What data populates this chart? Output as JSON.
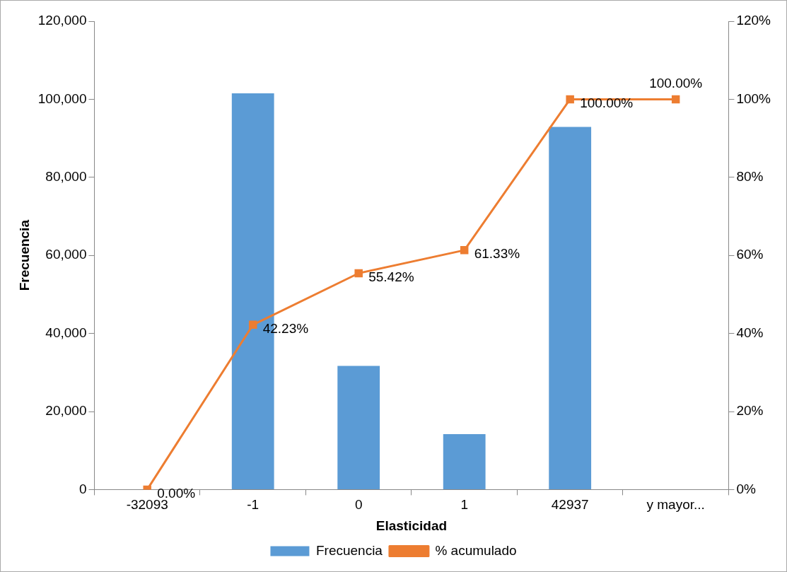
{
  "chart_data": {
    "type": "bar",
    "xlabel": "Elasticidad",
    "ylabel": "Frecuencia",
    "categories": [
      "-32093",
      "-1",
      "0",
      "1",
      "42937",
      "y mayor..."
    ],
    "series": [
      {
        "name": "Frecuencia",
        "color": "#5b9bd5",
        "values": [
          0,
          101500,
          31700,
          14200,
          92900,
          0
        ]
      },
      {
        "name": "% acumulado",
        "type": "line",
        "axis": "y2",
        "color": "#ed7d31",
        "marker": "square",
        "values": [
          0,
          42.23,
          55.42,
          61.33,
          100,
          100
        ],
        "value_labels": [
          "0.00%",
          "42.23%",
          "55.42%",
          "61.33%",
          "100.00%",
          "100.00%"
        ]
      }
    ],
    "ylim": [
      0,
      120000
    ],
    "yticks": [
      {
        "value": 0,
        "label": "0"
      },
      {
        "value": 20000,
        "label": "20,000"
      },
      {
        "value": 40000,
        "label": "40,000"
      },
      {
        "value": 60000,
        "label": "60,000"
      },
      {
        "value": 80000,
        "label": "80,000"
      },
      {
        "value": 100000,
        "label": "100,000"
      },
      {
        "value": 120000,
        "label": "120,000"
      }
    ],
    "y2lim": [
      0,
      120
    ],
    "y2ticks": [
      {
        "value": 0,
        "label": "0%"
      },
      {
        "value": 20,
        "label": "20%"
      },
      {
        "value": 40,
        "label": "40%"
      },
      {
        "value": 60,
        "label": "60%"
      },
      {
        "value": 80,
        "label": "80%"
      },
      {
        "value": 100,
        "label": "100%"
      },
      {
        "value": 120,
        "label": "120%"
      }
    ],
    "grid": false,
    "legend": "bottom"
  }
}
